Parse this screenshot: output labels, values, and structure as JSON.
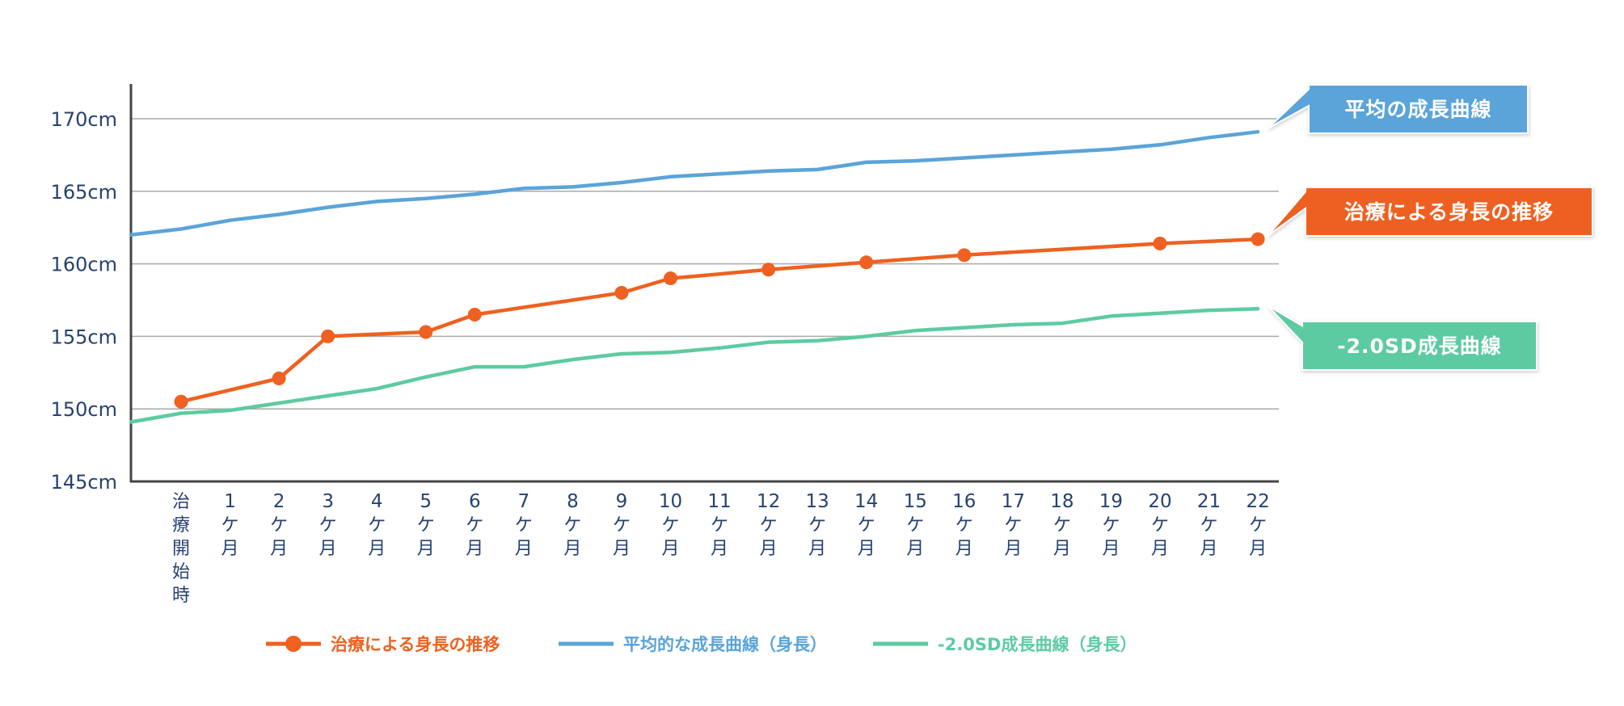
{
  "chart_data": {
    "type": "line",
    "title": "",
    "xlabel": "",
    "ylabel": "",
    "y_unit": "cm",
    "ylim": [
      145,
      170
    ],
    "y_ticks": [
      145,
      150,
      155,
      160,
      165,
      170
    ],
    "y_tick_labels": [
      "145cm",
      "150cm",
      "155cm",
      "160cm",
      "165cm",
      "170cm"
    ],
    "grid": "horizontal",
    "legend_position": "bottom",
    "categories": [
      "治療開始時",
      "1ケ月",
      "2ケ月",
      "3ケ月",
      "4ケ月",
      "5ケ月",
      "6ケ月",
      "7ケ月",
      "8ケ月",
      "9ケ月",
      "10ケ月",
      "11ケ月",
      "12ケ月",
      "13ケ月",
      "14ケ月",
      "15ケ月",
      "16ケ月",
      "17ケ月",
      "18ケ月",
      "19ケ月",
      "20ケ月",
      "21ケ月",
      "22ケ月"
    ],
    "x_labels": [
      {
        "head": "",
        "tail": [
          "治",
          "療",
          "開",
          "始",
          "時"
        ]
      },
      {
        "head": "1",
        "tail": [
          "ケ",
          "月"
        ]
      },
      {
        "head": "2",
        "tail": [
          "ケ",
          "月"
        ]
      },
      {
        "head": "3",
        "tail": [
          "ケ",
          "月"
        ]
      },
      {
        "head": "4",
        "tail": [
          "ケ",
          "月"
        ]
      },
      {
        "head": "5",
        "tail": [
          "ケ",
          "月"
        ]
      },
      {
        "head": "6",
        "tail": [
          "ケ",
          "月"
        ]
      },
      {
        "head": "7",
        "tail": [
          "ケ",
          "月"
        ]
      },
      {
        "head": "8",
        "tail": [
          "ケ",
          "月"
        ]
      },
      {
        "head": "9",
        "tail": [
          "ケ",
          "月"
        ]
      },
      {
        "head": "10",
        "tail": [
          "ケ",
          "月"
        ]
      },
      {
        "head": "11",
        "tail": [
          "ケ",
          "月"
        ]
      },
      {
        "head": "12",
        "tail": [
          "ケ",
          "月"
        ]
      },
      {
        "head": "13",
        "tail": [
          "ケ",
          "月"
        ]
      },
      {
        "head": "14",
        "tail": [
          "ケ",
          "月"
        ]
      },
      {
        "head": "15",
        "tail": [
          "ケ",
          "月"
        ]
      },
      {
        "head": "16",
        "tail": [
          "ケ",
          "月"
        ]
      },
      {
        "head": "17",
        "tail": [
          "ケ",
          "月"
        ]
      },
      {
        "head": "18",
        "tail": [
          "ケ",
          "月"
        ]
      },
      {
        "head": "19",
        "tail": [
          "ケ",
          "月"
        ]
      },
      {
        "head": "20",
        "tail": [
          "ケ",
          "月"
        ]
      },
      {
        "head": "21",
        "tail": [
          "ケ",
          "月"
        ]
      },
      {
        "head": "22",
        "tail": [
          "ケ",
          "月"
        ]
      }
    ],
    "series": [
      {
        "id": "treatment",
        "name": "治療による身長の推移",
        "color": "#EE6120",
        "markers": true,
        "points": [
          {
            "x": "治療開始時",
            "y": 150.5
          },
          {
            "x": "2ケ月",
            "y": 152.1
          },
          {
            "x": "3ケ月",
            "y": 155.0
          },
          {
            "x": "5ケ月",
            "y": 155.3
          },
          {
            "x": "6ケ月",
            "y": 156.5
          },
          {
            "x": "9ケ月",
            "y": 158.0
          },
          {
            "x": "10ケ月",
            "y": 159.0
          },
          {
            "x": "12ケ月",
            "y": 159.6
          },
          {
            "x": "14ケ月",
            "y": 160.1
          },
          {
            "x": "16ケ月",
            "y": 160.6
          },
          {
            "x": "20ケ月",
            "y": 161.4
          },
          {
            "x": "22ケ月",
            "y": 161.7
          }
        ]
      },
      {
        "id": "average",
        "name": "平均的な成長曲線（身長）",
        "color": "#5AA4D9",
        "markers": false,
        "starts_at_axis_value": 162.0,
        "values": [
          162.4,
          163.0,
          163.4,
          163.9,
          164.3,
          164.5,
          164.8,
          165.2,
          165.3,
          165.6,
          166.0,
          166.2,
          166.4,
          166.5,
          167.0,
          167.1,
          167.3,
          167.5,
          167.7,
          167.9,
          168.2,
          168.7,
          169.1
        ]
      },
      {
        "id": "minus2sd",
        "name": "-2.0SD成長曲線（身長）",
        "color": "#5DCBA1",
        "markers": false,
        "starts_at_axis_value": 149.1,
        "values": [
          149.7,
          149.9,
          150.4,
          150.9,
          151.4,
          152.2,
          152.9,
          152.9,
          153.4,
          153.8,
          153.9,
          154.2,
          154.6,
          154.7,
          155.0,
          155.4,
          155.6,
          155.8,
          155.9,
          156.4,
          156.6,
          156.8,
          156.9
        ]
      }
    ],
    "callouts": [
      {
        "series": "average",
        "text": "平均の成長曲線",
        "color": "#5AA4D9"
      },
      {
        "series": "treatment",
        "text": "治療による身長の推移",
        "color": "#EE6120"
      },
      {
        "series": "minus2sd",
        "text": "-2.0SD成長曲線",
        "color": "#5DCBA1"
      }
    ],
    "legend": [
      {
        "series": "treatment",
        "label": "治療による身長の推移",
        "color": "#EE6120",
        "marker": true
      },
      {
        "series": "average",
        "label": "平均的な成長曲線（身長）",
        "color": "#5AA4D9",
        "marker": false
      },
      {
        "series": "minus2sd",
        "label": "-2.0SD成長曲線（身長）",
        "color": "#5DCBA1",
        "marker": false
      }
    ],
    "colors": {
      "axis_text": "#274170",
      "axis_line": "#444444",
      "grid": "#AAAAAA"
    }
  }
}
